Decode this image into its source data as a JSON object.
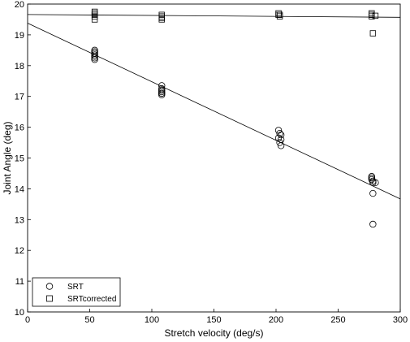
{
  "chart_data": {
    "type": "scatter",
    "xlabel": "Stretch velocity (deg/s)",
    "ylabel": "Joint Angle (deg)",
    "xlim": [
      0,
      300
    ],
    "ylim": [
      10,
      20
    ],
    "x_ticks": [
      0,
      50,
      100,
      150,
      200,
      250,
      300
    ],
    "y_ticks": [
      10,
      11,
      12,
      13,
      14,
      15,
      16,
      17,
      18,
      19,
      20
    ],
    "grid": false,
    "legend_position": "bottom-left",
    "series": [
      {
        "name": "SRT",
        "marker": "circle",
        "x": [
          54,
          54,
          54,
          54,
          54,
          54,
          54,
          108,
          108,
          108,
          108,
          108,
          108,
          108,
          202,
          202,
          203,
          203,
          204,
          204,
          204,
          277,
          277,
          277,
          278,
          278,
          278,
          278,
          280
        ],
        "y": [
          18.5,
          18.45,
          18.4,
          18.35,
          18.3,
          18.25,
          18.2,
          17.35,
          17.25,
          17.15,
          17.1,
          17.05,
          17.2,
          17.1,
          15.9,
          15.65,
          15.8,
          15.5,
          15.75,
          15.6,
          15.4,
          14.4,
          14.35,
          14.3,
          14.25,
          14.2,
          13.85,
          12.85,
          14.2
        ],
        "fit": {
          "x": [
            0,
            300
          ],
          "y": [
            19.38,
            13.67
          ]
        }
      },
      {
        "name": "SRTcorrected",
        "marker": "square",
        "x": [
          54,
          54,
          54,
          54,
          54,
          108,
          108,
          108,
          108,
          202,
          202,
          203,
          203,
          277,
          277,
          277,
          278,
          280
        ],
        "y": [
          19.75,
          19.7,
          19.65,
          19.6,
          19.5,
          19.65,
          19.6,
          19.55,
          19.5,
          19.7,
          19.65,
          19.6,
          19.65,
          19.7,
          19.65,
          19.6,
          19.05,
          19.62
        ],
        "fit": {
          "x": [
            0,
            300
          ],
          "y": [
            19.66,
            19.57
          ]
        }
      }
    ]
  }
}
